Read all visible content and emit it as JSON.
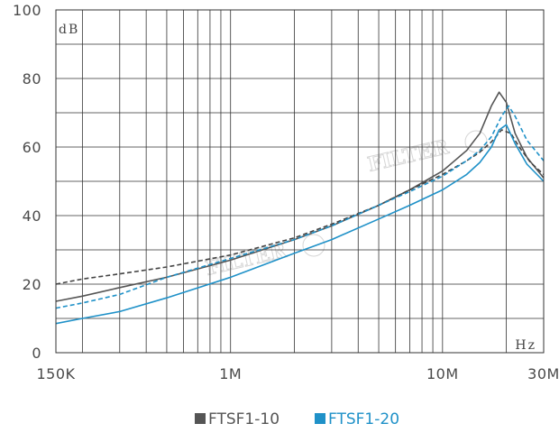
{
  "chart_data": {
    "type": "line",
    "title": "",
    "ylabel_unit": "dB",
    "xlabel_unit": "Hz",
    "x_scale": "log",
    "xlim_hz": [
      150000,
      30000000
    ],
    "ylim": [
      0,
      100
    ],
    "grid": true,
    "y_ticks": [
      {
        "value": 0,
        "label": "0"
      },
      {
        "value": 20,
        "label": "20"
      },
      {
        "value": 40,
        "label": "40"
      },
      {
        "value": 60,
        "label": "60"
      },
      {
        "value": 80,
        "label": "80"
      },
      {
        "value": 100,
        "label": "100"
      }
    ],
    "x_ticks": [
      {
        "value": 150000,
        "label": "150K"
      },
      {
        "value": 1000000,
        "label": "1M"
      },
      {
        "value": 10000000,
        "label": "10M"
      },
      {
        "value": 30000000,
        "label": "30M"
      }
    ],
    "legend_placement": "bottom",
    "watermark_text": "FILTER",
    "series": [
      {
        "name": "FTSF1-10",
        "color": "#555555",
        "dash": "solid",
        "x": [
          150000,
          200000,
          300000,
          500000,
          1000000,
          2000000,
          3000000,
          5000000,
          7000000,
          10000000,
          13000000,
          15000000,
          17000000,
          18500000,
          20000000,
          22000000,
          25000000,
          30000000
        ],
        "y": [
          15,
          16.5,
          19,
          22,
          27,
          33,
          37,
          43,
          47.5,
          53,
          59,
          64,
          72,
          76,
          73,
          64,
          57,
          51
        ]
      },
      {
        "name": "FTSF1-10 (dashed)",
        "color": "#444444",
        "dash": "dashed",
        "x": [
          150000,
          200000,
          300000,
          500000,
          1000000,
          2000000,
          3000000,
          5000000,
          7000000,
          10000000,
          13000000,
          15000000,
          17000000,
          19000000,
          21000000,
          23000000,
          26000000,
          30000000
        ],
        "y": [
          20,
          21.5,
          23,
          25,
          28.5,
          33.5,
          37.5,
          43,
          47.5,
          52,
          56,
          58.5,
          61.5,
          65,
          64,
          60,
          55.5,
          52
        ]
      },
      {
        "name": "FTSF1-20",
        "color": "#1f91c8",
        "dash": "solid",
        "x": [
          150000,
          200000,
          300000,
          500000,
          1000000,
          2000000,
          3000000,
          5000000,
          7000000,
          10000000,
          13000000,
          15000000,
          17000000,
          18500000,
          20000000,
          22000000,
          25000000,
          30000000
        ],
        "y": [
          8.5,
          10,
          12,
          16,
          22,
          29,
          33,
          39,
          43,
          47.5,
          52,
          55.5,
          60,
          65,
          66.5,
          61,
          55,
          50
        ]
      },
      {
        "name": "FTSF1-20 (dashed)",
        "color": "#1f91c8",
        "dash": "dashed",
        "x": [
          150000,
          200000,
          300000,
          500000,
          1000000,
          2000000,
          3000000,
          5000000,
          7000000,
          10000000,
          13000000,
          15000000,
          17000000,
          19000000,
          20500000,
          22000000,
          25000000,
          30000000
        ],
        "y": [
          13,
          14.5,
          17,
          22,
          27.5,
          33,
          37,
          43,
          47,
          51.5,
          56,
          59,
          63,
          69,
          72,
          69,
          62,
          56
        ]
      }
    ],
    "legend": [
      {
        "label": "FTSF1-10",
        "color": "#555555"
      },
      {
        "label": "FTSF1-20",
        "color": "#1f91c8"
      }
    ]
  }
}
